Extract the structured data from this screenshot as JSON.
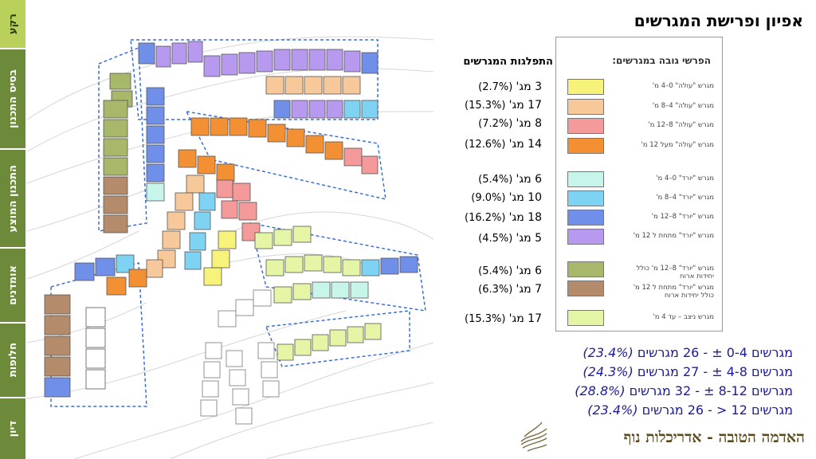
{
  "sidebar": {
    "tabs": [
      {
        "label": "רקע",
        "active": true
      },
      {
        "label": "בסיס התכנון",
        "active": false
      },
      {
        "label": "התכנון המוצע",
        "active": false
      },
      {
        "label": "אומדנים",
        "active": false
      },
      {
        "label": "חלופות",
        "active": false
      },
      {
        "label": "דיון",
        "active": false
      }
    ]
  },
  "header": {
    "title": "אפיון ופרישת המגרשים"
  },
  "distribution": {
    "title": "התפלגות המגרשים",
    "rows": [
      {
        "count": "3 מג'",
        "pct": "(2.7%)"
      },
      {
        "count": "17 מג'",
        "pct": "(15.3%)"
      },
      {
        "count": "8 מג'",
        "pct": "(7.2%)"
      },
      {
        "count": "14 מג'",
        "pct": "(12.6%)"
      },
      {
        "count": "6 מג'",
        "pct": "(5.4%)"
      },
      {
        "count": "10 מג'",
        "pct": "(9.0%)"
      },
      {
        "count": "18 מג'",
        "pct": "(16.2%)"
      },
      {
        "count": "5 מג'",
        "pct": "(4.5%)"
      },
      {
        "count": "6 מג'",
        "pct": "(5.4%)"
      },
      {
        "count": "7 מג'",
        "pct": "(6.3%)"
      },
      {
        "count": "17 מג'",
        "pct": "(15.3%)"
      }
    ]
  },
  "legend": {
    "title": "הפרשי גובה במגרשים:",
    "items": [
      {
        "label": "מגרש \"עולה\" 0–4 מ'",
        "color": "#f7f27a"
      },
      {
        "label": "מגרש \"עולה\" 4–8 מ'",
        "color": "#f6c89a"
      },
      {
        "label": "מגרש \"עולה\" 8–12 מ'",
        "color": "#f59a9a"
      },
      {
        "label": "מגרש \"עולה\" מעל 12 מ'",
        "color": "#f39034"
      },
      {
        "label": "מגרש \"יורד\" 0–4 מ'",
        "color": "#c8f5ea"
      },
      {
        "label": "מגרש \"יורד\" 4–8 מ'",
        "color": "#7fd3f2"
      },
      {
        "label": "מגרש \"יורד\" 8–12 מ'",
        "color": "#6f8fe8"
      },
      {
        "label": "מגרש \"יורד\" מתחת ל 12 מ'",
        "color": "#b79af0"
      },
      {
        "label": "מגרש \"יורד\" 8–12 מ' כולל יחידות ארוח",
        "color": "#a7b86a"
      },
      {
        "label": "מגרש \"יורד\" מתחת ל 12 מ' כולל יחידות ארוח",
        "color": "#b48c6c"
      },
      {
        "label": "מגרש ניצב – עד 4 מ'",
        "color": "#e4f6a6"
      }
    ]
  },
  "summary": [
    {
      "text": "מגרשים 0-4 ±  -  26 מגרשים",
      "pct": "(23.4%)"
    },
    {
      "text": "מגרשים 4-8 ±  -  27 מגרשים",
      "pct": "(24.3%)"
    },
    {
      "text": "מגרשים 8-12 ±  -  32 מגרשים",
      "pct": "(28.8%)"
    },
    {
      "text": "מגרשים 12 <  -  26 מגרשים",
      "pct": "(23.4%)"
    }
  ],
  "footer": {
    "brand": "האדמה הטובה - אדריכלות נוף"
  }
}
